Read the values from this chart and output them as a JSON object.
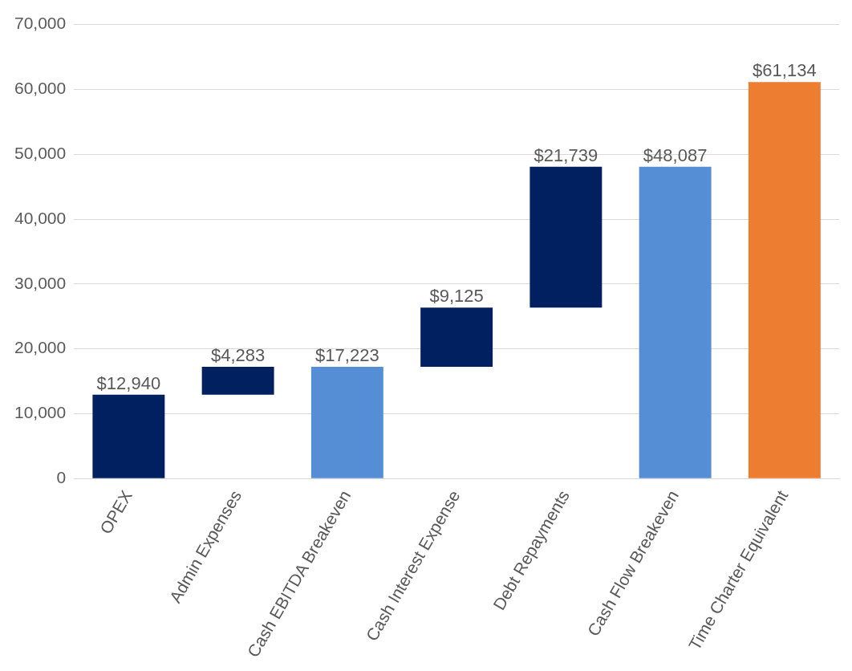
{
  "chart_data": {
    "type": "bar",
    "categories": [
      "OPEX",
      "Admin Expenses",
      "Cash EBITDA Breakeven",
      "Cash Interest Expense",
      "Debt Repayments",
      "Cash Flow Breakeven",
      "Time Charter Equivalent"
    ],
    "values": [
      12940,
      4283,
      17223,
      9125,
      21739,
      48087,
      61134
    ],
    "base": [
      0,
      12940,
      0,
      17223,
      26348,
      0,
      0
    ],
    "colors": [
      "#002060",
      "#002060",
      "#558ed5",
      "#002060",
      "#002060",
      "#558ed5",
      "#ed7d31"
    ],
    "value_labels": [
      "$12,940",
      "$4,283",
      "$17,223",
      "$9,125",
      "$21,739",
      "$48,087",
      "$61,134"
    ],
    "ylim": [
      0,
      70000
    ],
    "yticks": [
      {
        "value": 0,
        "label": "0"
      },
      {
        "value": 10000,
        "label": "10,000"
      },
      {
        "value": 20000,
        "label": "20,000"
      },
      {
        "value": 30000,
        "label": "30,000"
      },
      {
        "value": 40000,
        "label": "40,000"
      },
      {
        "value": 50000,
        "label": "50,000"
      },
      {
        "value": 60000,
        "label": "60,000"
      },
      {
        "value": 70000,
        "label": "70,000"
      }
    ],
    "grid": "y"
  }
}
